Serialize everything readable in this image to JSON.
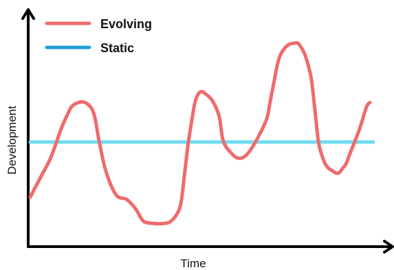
{
  "chart_data": {
    "type": "line",
    "xlabel": "Time",
    "ylabel": "Development",
    "grid": false,
    "ticks": false,
    "legend": {
      "position": "top-left"
    },
    "xlim": [
      0,
      100
    ],
    "ylim": [
      0,
      100
    ],
    "series": [
      {
        "name": "Evolving",
        "color": "#ef6b6b",
        "x": [
          0,
          3,
          6,
          9,
          11,
          12,
          14,
          16,
          18,
          19,
          20,
          22,
          25,
          28,
          30,
          31,
          33,
          36,
          39,
          41,
          43,
          44,
          45,
          46,
          47,
          48,
          49,
          50,
          51,
          53,
          55,
          56,
          57,
          58,
          60,
          62,
          64,
          67,
          69,
          70,
          71,
          72,
          73,
          75,
          77,
          78,
          79,
          80,
          81,
          82,
          83,
          84,
          85,
          86,
          87,
          88,
          89,
          90,
          91,
          92,
          93,
          94,
          96,
          98,
          99
        ],
        "y": [
          21,
          30,
          39,
          52,
          59,
          62,
          64,
          64,
          61,
          56,
          47,
          33,
          22,
          20,
          17,
          15,
          10,
          9,
          9,
          10,
          14,
          19,
          32,
          45,
          55,
          64,
          68,
          69,
          68,
          65,
          58,
          48,
          44,
          42,
          39,
          39,
          42,
          50,
          57,
          65,
          73,
          81,
          86,
          90,
          91,
          91,
          89,
          86,
          81,
          74,
          60,
          46,
          40,
          36,
          34,
          33,
          32,
          32,
          34,
          36,
          40,
          44,
          52,
          62,
          64
        ]
      },
      {
        "name": "Static",
        "color": "#6fdcf0",
        "x": [
          0,
          100
        ],
        "y": [
          46,
          46
        ]
      }
    ]
  }
}
